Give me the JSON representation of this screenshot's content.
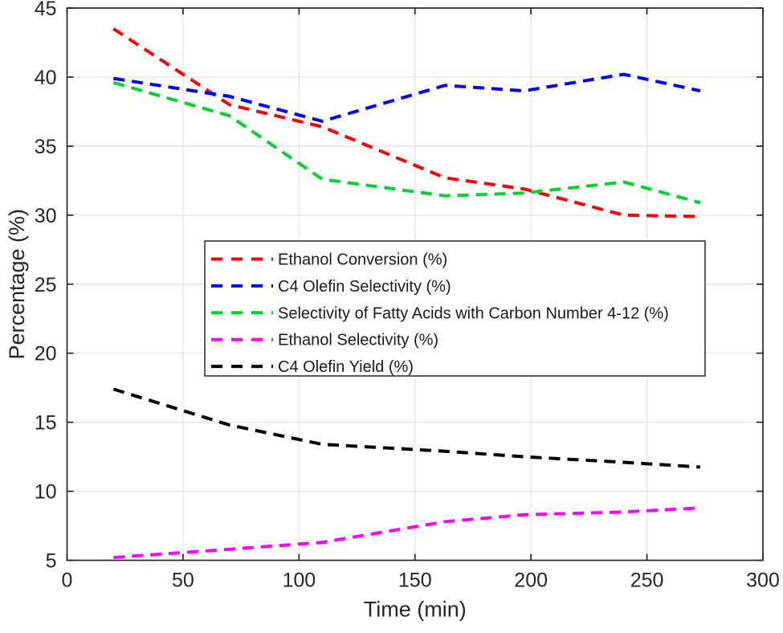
{
  "chart_data": {
    "type": "line",
    "title": "",
    "xlabel": "Time (min)",
    "ylabel": "Percentage (%)",
    "xlim": [
      0,
      300
    ],
    "ylim": [
      5,
      45
    ],
    "xticks": [
      0,
      50,
      100,
      150,
      200,
      250,
      300
    ],
    "yticks": [
      5,
      10,
      15,
      20,
      25,
      30,
      35,
      40,
      45
    ],
    "grid": true,
    "legend_position": "center-left",
    "line_style": "dashed",
    "x": [
      20,
      70,
      110,
      163,
      197,
      240,
      273
    ],
    "series": [
      {
        "name": "Ethanol Conversion (%)",
        "color": "#ff0000",
        "values": [
          43.5,
          38.0,
          36.4,
          32.7,
          31.9,
          30.0,
          29.9
        ]
      },
      {
        "name": "C4 Olefin Selectivity (%)",
        "color": "#0000ff",
        "values": [
          39.9,
          38.6,
          36.8,
          39.4,
          39.0,
          40.2,
          39.0
        ]
      },
      {
        "name": "Selectivity of Fatty Acids with Carbon Number 4-12 (%)",
        "color": "#00d42c",
        "values": [
          39.6,
          37.2,
          32.6,
          31.4,
          31.6,
          32.4,
          30.9
        ]
      },
      {
        "name": "Ethanol Selectivity (%)",
        "color": "#ff00ff",
        "values": [
          5.2,
          5.8,
          6.3,
          7.8,
          8.3,
          8.5,
          8.8
        ]
      },
      {
        "name": "C4 Olefin Yield (%)",
        "color": "#000000",
        "values": [
          17.4,
          14.8,
          13.4,
          12.9,
          12.5,
          12.1,
          11.75
        ]
      }
    ],
    "axis_color": "#262626",
    "grid_color": "#e2e2e2",
    "legend_border_color": "#262626",
    "background_color": "#ffffff"
  }
}
